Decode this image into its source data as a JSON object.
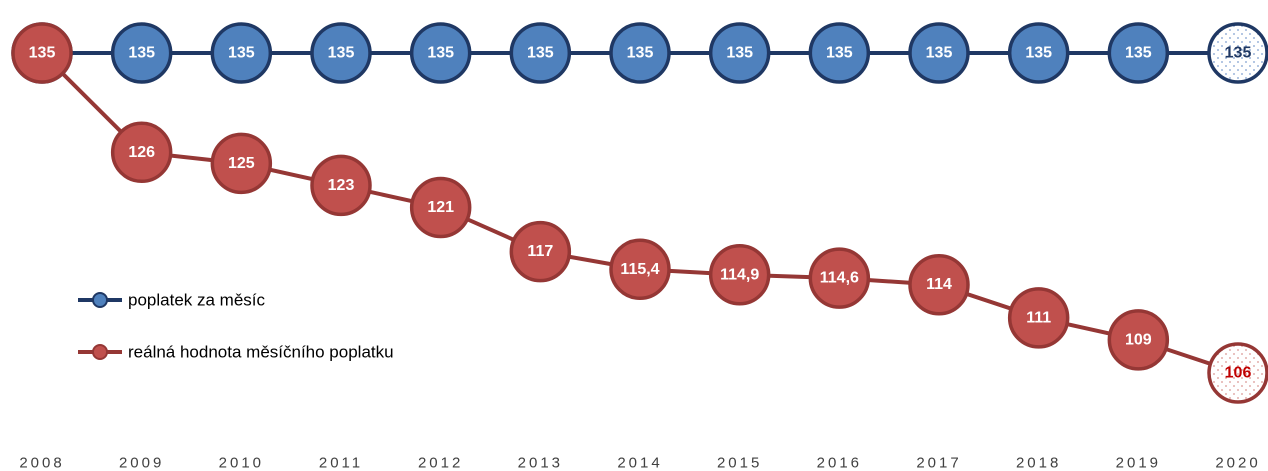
{
  "chart_data": {
    "type": "line",
    "categories": [
      "2008",
      "2009",
      "2010",
      "2011",
      "2012",
      "2013",
      "2014",
      "2015",
      "2016",
      "2017",
      "2018",
      "2019",
      "2020"
    ],
    "series": [
      {
        "name": "poplatek za měsíc",
        "color": "#4f81bd",
        "line_color": "#1f3864",
        "values": [
          135,
          135,
          135,
          135,
          135,
          135,
          135,
          135,
          135,
          135,
          135,
          135,
          135
        ]
      },
      {
        "name": "reálná hodnota měsíčního poplatku",
        "color": "#c0504d",
        "line_color": "#953735",
        "values": [
          135,
          126,
          125,
          123,
          121,
          117,
          115.4,
          114.9,
          114.6,
          114,
          111,
          109,
          106
        ],
        "value_labels": [
          "135",
          "126",
          "125",
          "123",
          "121",
          "117",
          "115,4",
          "114,9",
          "114,6",
          "114",
          "111",
          "109",
          "106"
        ]
      }
    ]
  }
}
